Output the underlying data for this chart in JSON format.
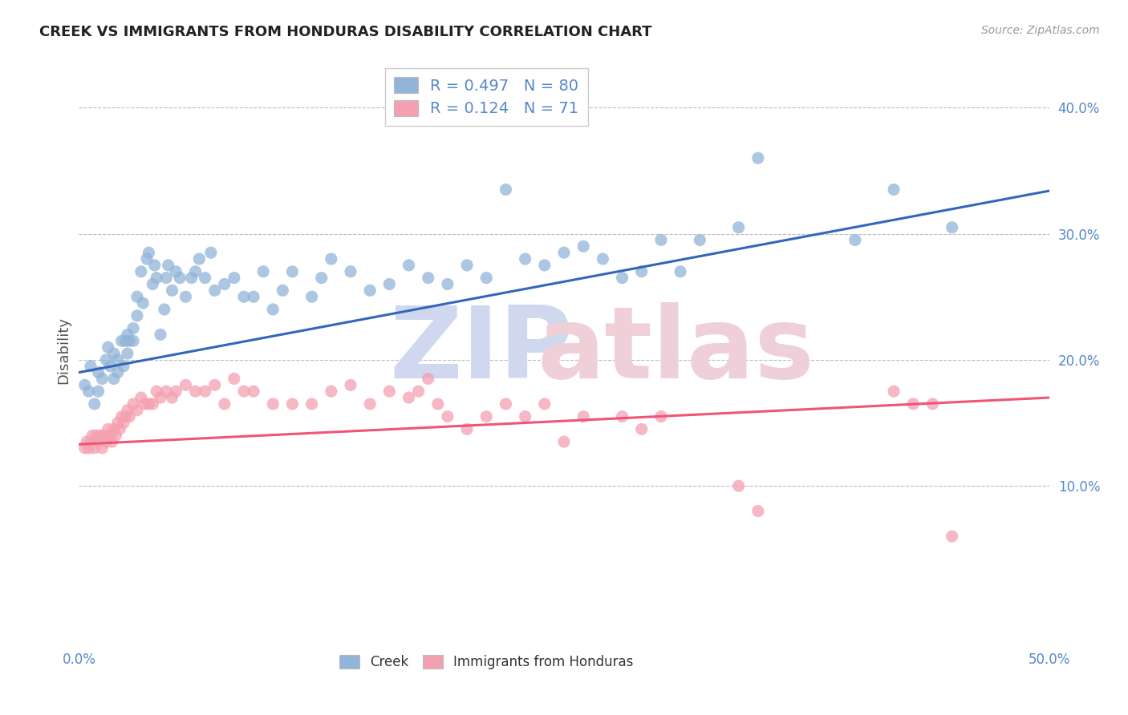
{
  "title": "CREEK VS IMMIGRANTS FROM HONDURAS DISABILITY CORRELATION CHART",
  "source": "Source: ZipAtlas.com",
  "ylabel": "Disability",
  "xlim": [
    0.0,
    0.5
  ],
  "ylim": [
    -0.025,
    0.44
  ],
  "x_ticks": [
    0.0,
    0.1,
    0.2,
    0.3,
    0.4,
    0.5
  ],
  "x_tick_labels": [
    "0.0%",
    "",
    "",
    "",
    "",
    "50.0%"
  ],
  "y_ticks": [
    0.1,
    0.2,
    0.3,
    0.4
  ],
  "y_tick_labels_right": [
    "10.0%",
    "20.0%",
    "30.0%",
    "40.0%"
  ],
  "legend_R1": "0.497",
  "legend_N1": "80",
  "legend_R2": "0.124",
  "legend_N2": "71",
  "blue_color": "#92B4D8",
  "pink_color": "#F4A0B0",
  "line_blue": "#3366BB",
  "line_pink": "#EE5577",
  "title_color": "#222222",
  "axis_tick_color": "#5588CC",
  "watermark_zip_color": "#D0D8F0",
  "watermark_atlas_color": "#F0D0D8",
  "blue_scatter_x": [
    0.003,
    0.005,
    0.006,
    0.008,
    0.01,
    0.01,
    0.012,
    0.014,
    0.015,
    0.016,
    0.018,
    0.018,
    0.02,
    0.02,
    0.022,
    0.023,
    0.024,
    0.025,
    0.025,
    0.026,
    0.028,
    0.028,
    0.03,
    0.03,
    0.032,
    0.033,
    0.035,
    0.036,
    0.038,
    0.039,
    0.04,
    0.042,
    0.044,
    0.045,
    0.046,
    0.048,
    0.05,
    0.052,
    0.055,
    0.058,
    0.06,
    0.062,
    0.065,
    0.068,
    0.07,
    0.075,
    0.08,
    0.085,
    0.09,
    0.095,
    0.1,
    0.105,
    0.11,
    0.12,
    0.125,
    0.13,
    0.14,
    0.15,
    0.16,
    0.17,
    0.18,
    0.19,
    0.2,
    0.21,
    0.22,
    0.23,
    0.24,
    0.25,
    0.26,
    0.27,
    0.28,
    0.29,
    0.3,
    0.31,
    0.32,
    0.34,
    0.35,
    0.4,
    0.42,
    0.45
  ],
  "blue_scatter_y": [
    0.18,
    0.175,
    0.195,
    0.165,
    0.175,
    0.19,
    0.185,
    0.2,
    0.21,
    0.195,
    0.185,
    0.205,
    0.2,
    0.19,
    0.215,
    0.195,
    0.215,
    0.205,
    0.22,
    0.215,
    0.225,
    0.215,
    0.235,
    0.25,
    0.27,
    0.245,
    0.28,
    0.285,
    0.26,
    0.275,
    0.265,
    0.22,
    0.24,
    0.265,
    0.275,
    0.255,
    0.27,
    0.265,
    0.25,
    0.265,
    0.27,
    0.28,
    0.265,
    0.285,
    0.255,
    0.26,
    0.265,
    0.25,
    0.25,
    0.27,
    0.24,
    0.255,
    0.27,
    0.25,
    0.265,
    0.28,
    0.27,
    0.255,
    0.26,
    0.275,
    0.265,
    0.26,
    0.275,
    0.265,
    0.335,
    0.28,
    0.275,
    0.285,
    0.29,
    0.28,
    0.265,
    0.27,
    0.295,
    0.27,
    0.295,
    0.305,
    0.36,
    0.295,
    0.335,
    0.305
  ],
  "pink_scatter_x": [
    0.003,
    0.004,
    0.005,
    0.006,
    0.007,
    0.008,
    0.009,
    0.01,
    0.011,
    0.012,
    0.013,
    0.014,
    0.015,
    0.016,
    0.017,
    0.018,
    0.019,
    0.02,
    0.021,
    0.022,
    0.023,
    0.024,
    0.025,
    0.026,
    0.028,
    0.03,
    0.032,
    0.034,
    0.036,
    0.038,
    0.04,
    0.042,
    0.045,
    0.048,
    0.05,
    0.055,
    0.06,
    0.065,
    0.07,
    0.075,
    0.08,
    0.085,
    0.09,
    0.1,
    0.11,
    0.12,
    0.13,
    0.14,
    0.15,
    0.16,
    0.17,
    0.175,
    0.18,
    0.185,
    0.19,
    0.2,
    0.21,
    0.22,
    0.23,
    0.24,
    0.25,
    0.26,
    0.28,
    0.29,
    0.3,
    0.34,
    0.35,
    0.42,
    0.43,
    0.44,
    0.45
  ],
  "pink_scatter_y": [
    0.13,
    0.135,
    0.13,
    0.135,
    0.14,
    0.13,
    0.14,
    0.135,
    0.14,
    0.13,
    0.14,
    0.135,
    0.145,
    0.14,
    0.135,
    0.145,
    0.14,
    0.15,
    0.145,
    0.155,
    0.15,
    0.155,
    0.16,
    0.155,
    0.165,
    0.16,
    0.17,
    0.165,
    0.165,
    0.165,
    0.175,
    0.17,
    0.175,
    0.17,
    0.175,
    0.18,
    0.175,
    0.175,
    0.18,
    0.165,
    0.185,
    0.175,
    0.175,
    0.165,
    0.165,
    0.165,
    0.175,
    0.18,
    0.165,
    0.175,
    0.17,
    0.175,
    0.185,
    0.165,
    0.155,
    0.145,
    0.155,
    0.165,
    0.155,
    0.165,
    0.135,
    0.155,
    0.155,
    0.145,
    0.155,
    0.1,
    0.08,
    0.175,
    0.165,
    0.165,
    0.06
  ],
  "blue_line_y_start": 0.19,
  "blue_line_y_end": 0.334,
  "pink_line_y_start": 0.133,
  "pink_line_y_end": 0.17
}
